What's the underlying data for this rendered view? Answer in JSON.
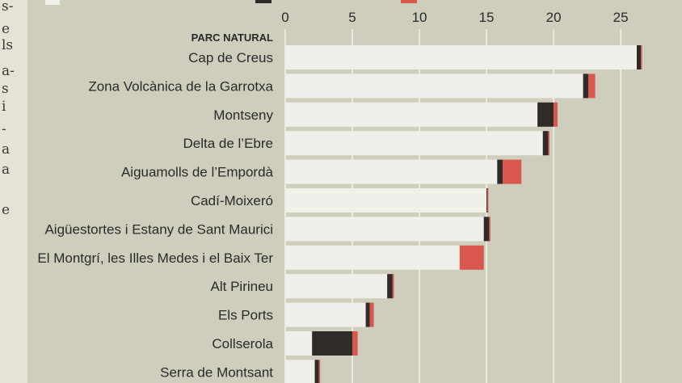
{
  "left_column_fragments": [
    "s-",
    "e",
    "ls",
    "a-",
    "s",
    "i",
    "-",
    "a",
    "a",
    "e"
  ],
  "colors": {
    "panel": "#cfcdbb",
    "bar_light": "#f1efe9",
    "bar_dark": "#2e2b28",
    "bar_red": "#d9574c",
    "grid": "#ebe9e0"
  },
  "chart_data": {
    "type": "bar",
    "orientation": "horizontal",
    "stacked": true,
    "header": "PARC NATURAL",
    "xlim": [
      0,
      26.5
    ],
    "xticks": [
      0,
      5,
      10,
      15,
      20,
      25
    ],
    "grid": true,
    "categories": [
      "Cap de Creus",
      "Zona Volcànica de la Garrotxa",
      "Montseny",
      "Delta de l’Ebre",
      "Aiguamolls de l’Empordà",
      "Cadí-Moixeró",
      "Aigüestortes i Estany de Sant Maurici",
      "El Montgrí, les Illes Medes i el Baix Ter",
      "Alt Pirineu",
      "Els Ports",
      "Collserola",
      "Serra de Montsant"
    ],
    "series": [
      {
        "values": [
          26.2,
          22.2,
          18.8,
          19.2,
          15.8,
          15.0,
          14.8,
          13.0,
          7.6,
          6.0,
          2.0,
          2.2
        ]
      },
      {
        "values": [
          0.3,
          0.4,
          1.2,
          0.4,
          0.4,
          0.05,
          0.4,
          0.0,
          0.4,
          0.3,
          3.0,
          0.3
        ]
      },
      {
        "values": [
          0.05,
          0.5,
          0.3,
          0.05,
          1.4,
          0.05,
          0.05,
          1.8,
          0.1,
          0.3,
          0.4,
          0.1
        ]
      }
    ]
  }
}
